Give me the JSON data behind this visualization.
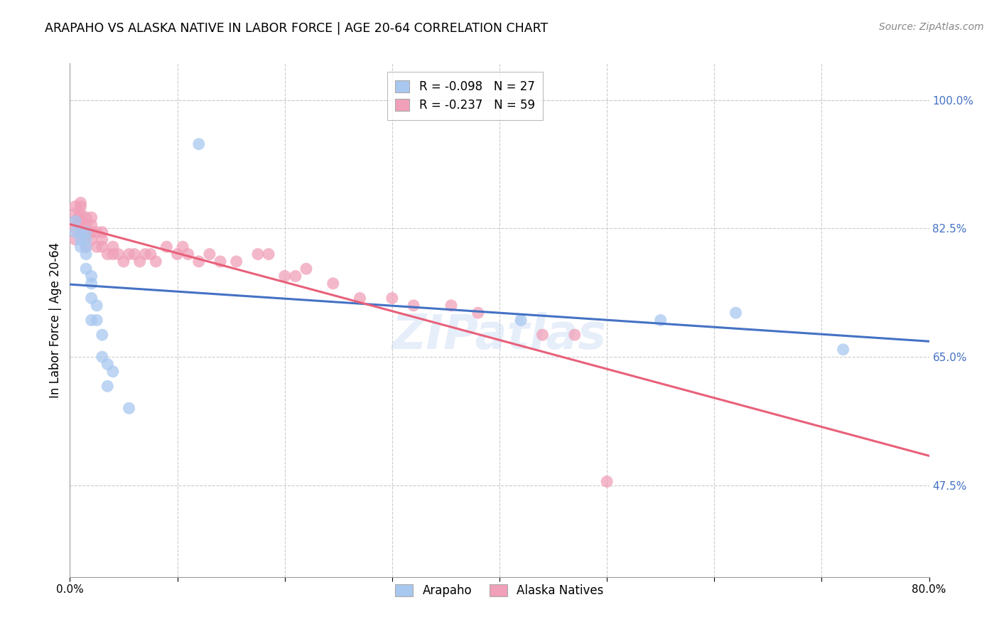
{
  "title": "ARAPAHO VS ALASKA NATIVE IN LABOR FORCE | AGE 20-64 CORRELATION CHART",
  "source": "Source: ZipAtlas.com",
  "ylabel": "In Labor Force | Age 20-64",
  "xlim": [
    0.0,
    0.8
  ],
  "ylim": [
    0.35,
    1.05
  ],
  "xticks": [
    0.0,
    0.1,
    0.2,
    0.3,
    0.4,
    0.5,
    0.6,
    0.7,
    0.8
  ],
  "xticklabels": [
    "0.0%",
    "",
    "",
    "",
    "",
    "",
    "",
    "",
    "80.0%"
  ],
  "yticks_right": [
    1.0,
    0.825,
    0.65,
    0.475
  ],
  "ytick_right_labels": [
    "100.0%",
    "82.5%",
    "65.0%",
    "47.5%"
  ],
  "arapaho_x": [
    0.005,
    0.005,
    0.01,
    0.01,
    0.01,
    0.015,
    0.015,
    0.015,
    0.015,
    0.015,
    0.02,
    0.02,
    0.02,
    0.02,
    0.025,
    0.025,
    0.03,
    0.03,
    0.035,
    0.035,
    0.04,
    0.055,
    0.12,
    0.42,
    0.55,
    0.62,
    0.72
  ],
  "arapaho_y": [
    0.835,
    0.82,
    0.82,
    0.81,
    0.8,
    0.82,
    0.81,
    0.8,
    0.79,
    0.77,
    0.76,
    0.75,
    0.73,
    0.7,
    0.72,
    0.7,
    0.68,
    0.65,
    0.64,
    0.61,
    0.63,
    0.58,
    0.94,
    0.7,
    0.7,
    0.71,
    0.66
  ],
  "alaska_x": [
    0.005,
    0.005,
    0.005,
    0.005,
    0.005,
    0.008,
    0.008,
    0.01,
    0.01,
    0.01,
    0.01,
    0.01,
    0.015,
    0.015,
    0.015,
    0.015,
    0.015,
    0.02,
    0.02,
    0.02,
    0.02,
    0.025,
    0.025,
    0.03,
    0.03,
    0.03,
    0.035,
    0.04,
    0.04,
    0.045,
    0.05,
    0.055,
    0.06,
    0.065,
    0.07,
    0.075,
    0.08,
    0.09,
    0.1,
    0.105,
    0.11,
    0.12,
    0.13,
    0.14,
    0.155,
    0.175,
    0.185,
    0.2,
    0.21,
    0.22,
    0.245,
    0.27,
    0.3,
    0.32,
    0.355,
    0.38,
    0.44,
    0.47,
    0.5
  ],
  "alaska_y": [
    0.855,
    0.845,
    0.835,
    0.825,
    0.81,
    0.84,
    0.83,
    0.86,
    0.855,
    0.845,
    0.835,
    0.82,
    0.84,
    0.83,
    0.82,
    0.815,
    0.8,
    0.84,
    0.83,
    0.82,
    0.81,
    0.82,
    0.8,
    0.82,
    0.81,
    0.8,
    0.79,
    0.8,
    0.79,
    0.79,
    0.78,
    0.79,
    0.79,
    0.78,
    0.79,
    0.79,
    0.78,
    0.8,
    0.79,
    0.8,
    0.79,
    0.78,
    0.79,
    0.78,
    0.78,
    0.79,
    0.79,
    0.76,
    0.76,
    0.77,
    0.75,
    0.73,
    0.73,
    0.72,
    0.72,
    0.71,
    0.68,
    0.68,
    0.48
  ],
  "blue_color": "#a8c8f0",
  "pink_color": "#f0a0b8",
  "blue_line_color": "#4472c4",
  "pink_line_color": "#e8607a",
  "legend_R_arapaho": "R = -0.098",
  "legend_N_arapaho": "N = 27",
  "legend_R_alaska": "R = -0.237",
  "legend_N_alaska": "N = 59",
  "watermark": "ZIPatlas",
  "background_color": "#ffffff",
  "grid_color": "#cccccc"
}
